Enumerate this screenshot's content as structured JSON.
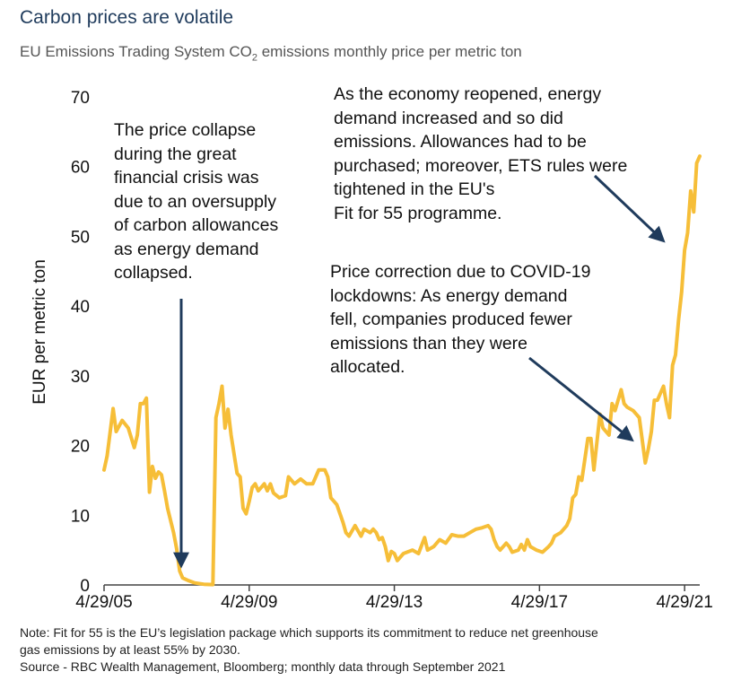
{
  "title": "Carbon prices are volatile",
  "subtitle_main": "EU Emissions Trading System CO",
  "subtitle_sub": "2",
  "subtitle_rest": " emissions monthly price per metric ton",
  "annotations": {
    "gfc": [
      "The price collapse",
      "during the great",
      "financial crisis was",
      "due to an oversupply",
      "of carbon allowances",
      "as energy demand",
      "collapsed."
    ],
    "reopen": [
      "As the economy reopened, energy",
      "demand increased and so did",
      "emissions. Allowances had to be",
      "purchased; moreover, ETS rules were",
      "tightened in the EU's",
      "Fit for 55 programme."
    ],
    "covid": [
      "Price correction due to COVID-19",
      "lockdowns: As energy demand",
      "fell, companies produced fewer",
      "emissions than they were",
      "allocated."
    ]
  },
  "notes": {
    "line1": "Note: Fit for 55 is the EU’s legislation package which supports its commitment to reduce net greenhouse",
    "line2": "gas emissions by at least 55% by 2030.",
    "line3": "Source - RBC Wealth Management, Bloomberg; monthly data through September 2021"
  },
  "colors": {
    "line": "#f6be38",
    "arrow": "#1f3b5c",
    "axis": "#444444"
  },
  "chart_data": {
    "type": "line",
    "ylabel": "EUR per metric ton",
    "ylim": [
      0,
      70
    ],
    "yticks": [
      0,
      10,
      20,
      30,
      40,
      50,
      60,
      70
    ],
    "xlim": [
      "2005-04",
      "2021-09"
    ],
    "xticks": [
      "4/29/05",
      "4/29/09",
      "4/29/13",
      "4/29/17",
      "4/29/21"
    ],
    "series": [
      {
        "points": [
          [
            "2005-04",
            16.5
          ],
          [
            "2005-05",
            18.5
          ],
          [
            "2005-07",
            25.3
          ],
          [
            "2005-08",
            22.0
          ],
          [
            "2005-10",
            23.6
          ],
          [
            "2005-12",
            22.5
          ],
          [
            "2006-02",
            19.7
          ],
          [
            "2006-03",
            21.5
          ],
          [
            "2006-04",
            26.0
          ],
          [
            "2006-05",
            26.0
          ],
          [
            "2006-06",
            26.8
          ],
          [
            "2006-07",
            13.3
          ],
          [
            "2006-08",
            17.0
          ],
          [
            "2006-09",
            15.3
          ],
          [
            "2006-10",
            16.2
          ],
          [
            "2006-11",
            15.8
          ],
          [
            "2006-12",
            13.5
          ],
          [
            "2007-01",
            11.0
          ],
          [
            "2007-03",
            7.5
          ],
          [
            "2007-04",
            5.2
          ],
          [
            "2007-05",
            2.0
          ],
          [
            "2007-06",
            1.0
          ],
          [
            "2007-08",
            0.6
          ],
          [
            "2007-10",
            0.3
          ],
          [
            "2008-01",
            0.1
          ],
          [
            "2008-04",
            0.05
          ],
          [
            "2008-05",
            24.0
          ],
          [
            "2008-06",
            26.0
          ],
          [
            "2008-07",
            28.5
          ],
          [
            "2008-08",
            22.5
          ],
          [
            "2008-09",
            25.2
          ],
          [
            "2008-10",
            21.5
          ],
          [
            "2008-12",
            16.0
          ],
          [
            "2009-01",
            15.5
          ],
          [
            "2009-02",
            11.0
          ],
          [
            "2009-03",
            10.2
          ],
          [
            "2009-04",
            12.0
          ],
          [
            "2009-05",
            14.0
          ],
          [
            "2009-06",
            14.5
          ],
          [
            "2009-07",
            13.5
          ],
          [
            "2009-09",
            14.5
          ],
          [
            "2009-10",
            13.5
          ],
          [
            "2009-11",
            14.5
          ],
          [
            "2009-12",
            13.2
          ],
          [
            "2010-02",
            12.5
          ],
          [
            "2010-04",
            12.8
          ],
          [
            "2010-05",
            15.5
          ],
          [
            "2010-07",
            14.5
          ],
          [
            "2010-09",
            15.2
          ],
          [
            "2010-11",
            14.5
          ],
          [
            "2011-01",
            14.5
          ],
          [
            "2011-03",
            16.5
          ],
          [
            "2011-05",
            16.5
          ],
          [
            "2011-06",
            15.5
          ],
          [
            "2011-07",
            12.5
          ],
          [
            "2011-08",
            12.0
          ],
          [
            "2011-09",
            11.5
          ],
          [
            "2011-11",
            9.0
          ],
          [
            "2011-12",
            7.5
          ],
          [
            "2012-01",
            7.0
          ],
          [
            "2012-03",
            8.5
          ],
          [
            "2012-05",
            7.0
          ],
          [
            "2012-06",
            8.0
          ],
          [
            "2012-08",
            7.5
          ],
          [
            "2012-09",
            8.0
          ],
          [
            "2012-10",
            7.5
          ],
          [
            "2012-11",
            6.5
          ],
          [
            "2012-12",
            6.8
          ],
          [
            "2013-01",
            5.5
          ],
          [
            "2013-02",
            3.5
          ],
          [
            "2013-03",
            4.8
          ],
          [
            "2013-04",
            4.5
          ],
          [
            "2013-05",
            3.5
          ],
          [
            "2013-07",
            4.5
          ],
          [
            "2013-10",
            5.0
          ],
          [
            "2013-12",
            4.5
          ],
          [
            "2014-02",
            6.8
          ],
          [
            "2014-03",
            5.0
          ],
          [
            "2014-05",
            5.5
          ],
          [
            "2014-07",
            6.5
          ],
          [
            "2014-09",
            6.0
          ],
          [
            "2014-11",
            7.2
          ],
          [
            "2015-01",
            7.0
          ],
          [
            "2015-03",
            7.0
          ],
          [
            "2015-05",
            7.5
          ],
          [
            "2015-07",
            8.0
          ],
          [
            "2015-09",
            8.2
          ],
          [
            "2015-11",
            8.5
          ],
          [
            "2015-12",
            8.0
          ],
          [
            "2016-01",
            6.5
          ],
          [
            "2016-02",
            5.5
          ],
          [
            "2016-03",
            5.0
          ],
          [
            "2016-04",
            5.5
          ],
          [
            "2016-05",
            6.0
          ],
          [
            "2016-06",
            5.5
          ],
          [
            "2016-07",
            4.7
          ],
          [
            "2016-09",
            5.0
          ],
          [
            "2016-10",
            5.8
          ],
          [
            "2016-11",
            5.0
          ],
          [
            "2016-12",
            6.5
          ],
          [
            "2017-01",
            5.5
          ],
          [
            "2017-03",
            5.0
          ],
          [
            "2017-05",
            4.7
          ],
          [
            "2017-07",
            5.5
          ],
          [
            "2017-08",
            6.0
          ],
          [
            "2017-09",
            7.0
          ],
          [
            "2017-11",
            7.5
          ],
          [
            "2018-01",
            8.5
          ],
          [
            "2018-02",
            9.5
          ],
          [
            "2018-03",
            12.5
          ],
          [
            "2018-04",
            13.0
          ],
          [
            "2018-05",
            15.5
          ],
          [
            "2018-06",
            15.0
          ],
          [
            "2018-08",
            21.0
          ],
          [
            "2018-09",
            21.0
          ],
          [
            "2018-10",
            16.5
          ],
          [
            "2018-11",
            20.5
          ],
          [
            "2018-12",
            24.5
          ],
          [
            "2019-01",
            22.5
          ],
          [
            "2019-03",
            21.5
          ],
          [
            "2019-04",
            26.0
          ],
          [
            "2019-05",
            25.0
          ],
          [
            "2019-06",
            26.5
          ],
          [
            "2019-07",
            28.0
          ],
          [
            "2019-08",
            26.0
          ],
          [
            "2019-09",
            25.5
          ],
          [
            "2019-11",
            25.0
          ],
          [
            "2019-12",
            24.5
          ],
          [
            "2020-01",
            24.0
          ],
          [
            "2020-03",
            17.5
          ],
          [
            "2020-04",
            19.5
          ],
          [
            "2020-05",
            22.0
          ],
          [
            "2020-06",
            26.5
          ],
          [
            "2020-07",
            26.5
          ],
          [
            "2020-09",
            28.5
          ],
          [
            "2020-10",
            26.0
          ],
          [
            "2020-11",
            24.0
          ],
          [
            "2020-12",
            31.5
          ],
          [
            "2021-01",
            33.0
          ],
          [
            "2021-02",
            38.0
          ],
          [
            "2021-03",
            42.0
          ],
          [
            "2021-04",
            48.0
          ],
          [
            "2021-05",
            50.5
          ],
          [
            "2021-06",
            56.5
          ],
          [
            "2021-07",
            53.5
          ],
          [
            "2021-08",
            60.5
          ],
          [
            "2021-09",
            61.5
          ]
        ]
      }
    ]
  }
}
